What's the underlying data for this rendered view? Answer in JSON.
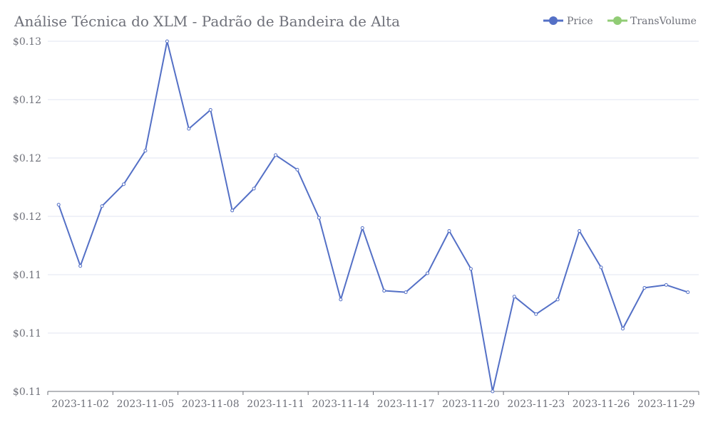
{
  "chart_data": {
    "type": "line",
    "title": "Análise Técnica do XLM - Padrão de Bandeira de Alta",
    "legend": [
      {
        "name": "Price",
        "color": "#5470c6"
      },
      {
        "name": "TransVolume",
        "color": "#91cc75"
      }
    ],
    "x": [
      "2023-11-01",
      "2023-11-02",
      "2023-11-03",
      "2023-11-04",
      "2023-11-05",
      "2023-11-06",
      "2023-11-07",
      "2023-11-08",
      "2023-11-09",
      "2023-11-10",
      "2023-11-11",
      "2023-11-12",
      "2023-11-13",
      "2023-11-14",
      "2023-11-15",
      "2023-11-16",
      "2023-11-17",
      "2023-11-18",
      "2023-11-19",
      "2023-11-20",
      "2023-11-21",
      "2023-11-22",
      "2023-11-23",
      "2023-11-24",
      "2023-11-25",
      "2023-11-26",
      "2023-11-27",
      "2023-11-28",
      "2023-11-29",
      "2023-11-30"
    ],
    "x_tick_labels": [
      "2023-11-02",
      "2023-11-05",
      "2023-11-08",
      "2023-11-11",
      "2023-11-14",
      "2023-11-17",
      "2023-11-20",
      "2023-11-23",
      "2023-11-26",
      "2023-11-29"
    ],
    "y_tick_labels": [
      "$0.13",
      "$0.12",
      "$0.12",
      "$0.12",
      "$0.11",
      "$0.11",
      "$0.11"
    ],
    "ylim": [
      0.106,
      0.13
    ],
    "grid": true,
    "legend_position": "top-right",
    "series": [
      {
        "name": "Price",
        "color": "#5470c6",
        "values": [
          0.1188,
          0.1146,
          0.1187,
          0.1202,
          0.1225,
          0.13,
          0.124,
          0.1253,
          0.1184,
          0.1199,
          0.1222,
          0.1212,
          0.1179,
          0.1123,
          0.1172,
          0.1129,
          0.1128,
          0.1141,
          0.117,
          0.1144,
          0.106,
          0.1125,
          0.1113,
          0.1123,
          0.117,
          0.1145,
          0.1103,
          0.1131,
          0.1133,
          0.1128
        ]
      }
    ]
  }
}
